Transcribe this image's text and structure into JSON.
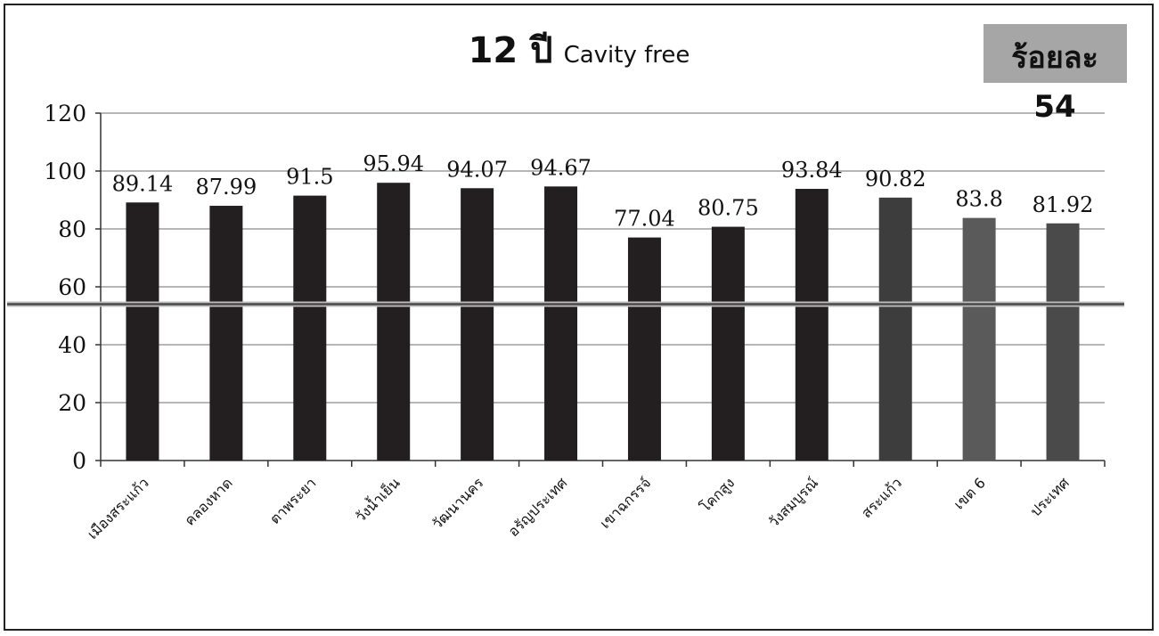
{
  "chart_data": {
    "type": "bar",
    "title_bold": "12 ปี",
    "title_rest": "Cavity free",
    "target_label": "ร้อยละ",
    "target_value": 54,
    "categories": [
      "เมืองสระแก้ว",
      "คลองหาด",
      "ตาพระยา",
      "วังน้ำเย็น",
      "วัฒนานคร",
      "อรัญประเทศ",
      "เขาฉกรรจ์",
      "โคกสูง",
      "วังสมบูรณ์",
      "สระแก้ว",
      "เขต 6",
      "ประเทศ"
    ],
    "values": [
      89.14,
      87.99,
      91.5,
      95.94,
      94.07,
      94.67,
      77.04,
      80.75,
      93.84,
      90.82,
      83.8,
      81.92
    ],
    "value_labels": [
      "89.14",
      "87.99",
      "91.5",
      "95.94",
      "94.07",
      "94.67",
      "77.04",
      "80.75",
      "93.84",
      "90.82",
      "83.8",
      "81.92"
    ],
    "bar_colors": [
      "#231f20",
      "#231f20",
      "#231f20",
      "#231f20",
      "#231f20",
      "#231f20",
      "#231f20",
      "#231f20",
      "#231f20",
      "#3d3d3d",
      "#5a5a5a",
      "#4a4a4a"
    ],
    "ylim": [
      0,
      120
    ],
    "yticks": [
      0,
      20,
      40,
      60,
      80,
      100,
      120
    ],
    "ytick_labels": [
      "0",
      "20",
      "40",
      "60",
      "80",
      "100",
      "120"
    ],
    "grid": true,
    "xlabel": "",
    "ylabel": ""
  }
}
